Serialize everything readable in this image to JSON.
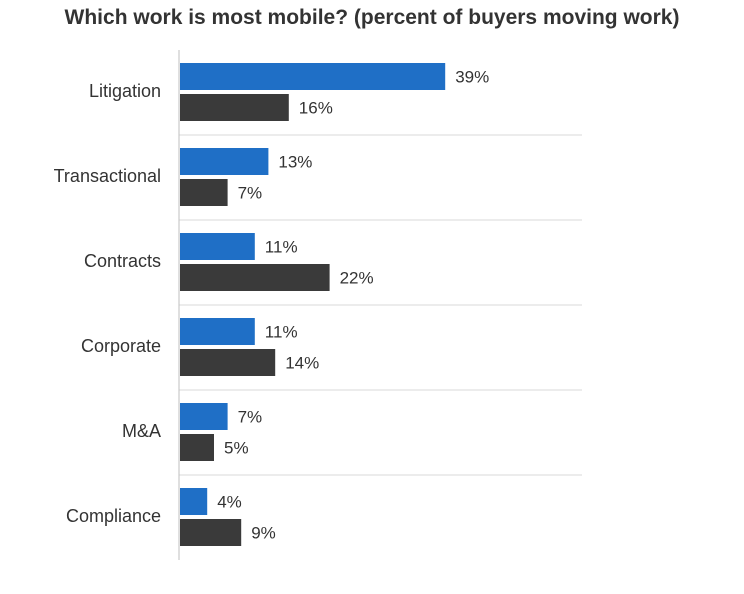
{
  "chart_data": {
    "type": "bar",
    "orientation": "horizontal",
    "title": "Which work is most mobile? (percent of buyers moving work)",
    "categories": [
      "Litigation",
      "Transactional",
      "Contracts",
      "Corporate",
      "M&A",
      "Compliance"
    ],
    "series": [
      {
        "values": [
          39,
          13,
          11,
          11,
          7,
          4
        ],
        "color": "#1f6fc6"
      },
      {
        "values": [
          16,
          7,
          22,
          14,
          5,
          9
        ],
        "color": "#3a3a3a"
      }
    ],
    "value_format": "{v}%",
    "xlim": [
      0,
      70
    ],
    "grid": "horizontal separators between categories",
    "legend": "none"
  }
}
